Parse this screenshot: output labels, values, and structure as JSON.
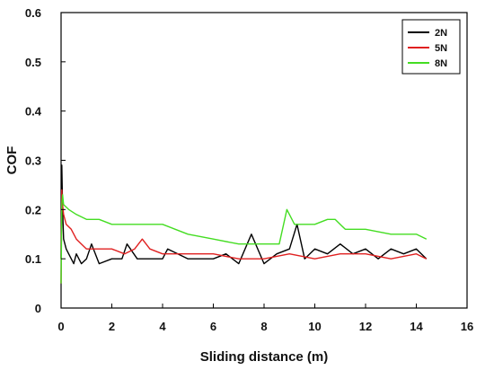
{
  "chart_data": {
    "type": "line",
    "title": "",
    "xlabel": "Sliding distance (m)",
    "ylabel": "COF",
    "xlim": [
      0,
      16
    ],
    "ylim": [
      0,
      0.6
    ],
    "xticks": [
      0,
      2,
      4,
      6,
      8,
      10,
      12,
      14,
      16
    ],
    "yticks": [
      0,
      0.1,
      0.2,
      0.3,
      0.4,
      0.5,
      0.6
    ],
    "grid": false,
    "legend_position": "top-right",
    "series": [
      {
        "name": "2N",
        "color": "#000000",
        "points": [
          [
            0.0,
            0.1
          ],
          [
            0.03,
            0.29
          ],
          [
            0.06,
            0.2
          ],
          [
            0.1,
            0.14
          ],
          [
            0.2,
            0.12
          ],
          [
            0.3,
            0.11
          ],
          [
            0.5,
            0.09
          ],
          [
            0.6,
            0.11
          ],
          [
            0.8,
            0.09
          ],
          [
            1.0,
            0.1
          ],
          [
            1.2,
            0.13
          ],
          [
            1.5,
            0.09
          ],
          [
            2.0,
            0.1
          ],
          [
            2.4,
            0.1
          ],
          [
            2.6,
            0.13
          ],
          [
            3.0,
            0.1
          ],
          [
            3.5,
            0.1
          ],
          [
            4.0,
            0.1
          ],
          [
            4.2,
            0.12
          ],
          [
            5.0,
            0.1
          ],
          [
            6.0,
            0.1
          ],
          [
            6.5,
            0.11
          ],
          [
            7.0,
            0.09
          ],
          [
            7.5,
            0.15
          ],
          [
            8.0,
            0.09
          ],
          [
            8.5,
            0.11
          ],
          [
            9.0,
            0.12
          ],
          [
            9.3,
            0.17
          ],
          [
            9.6,
            0.1
          ],
          [
            10.0,
            0.12
          ],
          [
            10.5,
            0.11
          ],
          [
            11.0,
            0.13
          ],
          [
            11.5,
            0.11
          ],
          [
            12.0,
            0.12
          ],
          [
            12.5,
            0.1
          ],
          [
            13.0,
            0.12
          ],
          [
            13.5,
            0.11
          ],
          [
            14.0,
            0.12
          ],
          [
            14.4,
            0.1
          ]
        ]
      },
      {
        "name": "5N",
        "color": "#e02020",
        "points": [
          [
            0.0,
            0.05
          ],
          [
            0.03,
            0.24
          ],
          [
            0.06,
            0.21
          ],
          [
            0.1,
            0.19
          ],
          [
            0.2,
            0.17
          ],
          [
            0.4,
            0.16
          ],
          [
            0.6,
            0.14
          ],
          [
            0.8,
            0.13
          ],
          [
            1.0,
            0.12
          ],
          [
            1.5,
            0.12
          ],
          [
            2.0,
            0.12
          ],
          [
            2.5,
            0.11
          ],
          [
            2.9,
            0.12
          ],
          [
            3.2,
            0.14
          ],
          [
            3.5,
            0.12
          ],
          [
            4.0,
            0.11
          ],
          [
            5.0,
            0.11
          ],
          [
            6.0,
            0.11
          ],
          [
            7.0,
            0.1
          ],
          [
            8.0,
            0.1
          ],
          [
            9.0,
            0.11
          ],
          [
            10.0,
            0.1
          ],
          [
            11.0,
            0.11
          ],
          [
            12.0,
            0.11
          ],
          [
            13.0,
            0.1
          ],
          [
            14.0,
            0.11
          ],
          [
            14.4,
            0.1
          ]
        ]
      },
      {
        "name": "8N",
        "color": "#44dd22",
        "points": [
          [
            0.0,
            0.05
          ],
          [
            0.03,
            0.21
          ],
          [
            0.06,
            0.23
          ],
          [
            0.1,
            0.21
          ],
          [
            0.3,
            0.2
          ],
          [
            0.6,
            0.19
          ],
          [
            1.0,
            0.18
          ],
          [
            1.5,
            0.18
          ],
          [
            2.0,
            0.17
          ],
          [
            3.0,
            0.17
          ],
          [
            4.0,
            0.17
          ],
          [
            4.5,
            0.16
          ],
          [
            5.0,
            0.15
          ],
          [
            6.0,
            0.14
          ],
          [
            7.0,
            0.13
          ],
          [
            8.0,
            0.13
          ],
          [
            8.6,
            0.13
          ],
          [
            8.9,
            0.2
          ],
          [
            9.2,
            0.17
          ],
          [
            9.5,
            0.17
          ],
          [
            10.0,
            0.17
          ],
          [
            10.5,
            0.18
          ],
          [
            10.8,
            0.18
          ],
          [
            11.2,
            0.16
          ],
          [
            12.0,
            0.16
          ],
          [
            13.0,
            0.15
          ],
          [
            14.0,
            0.15
          ],
          [
            14.4,
            0.14
          ]
        ]
      }
    ]
  }
}
